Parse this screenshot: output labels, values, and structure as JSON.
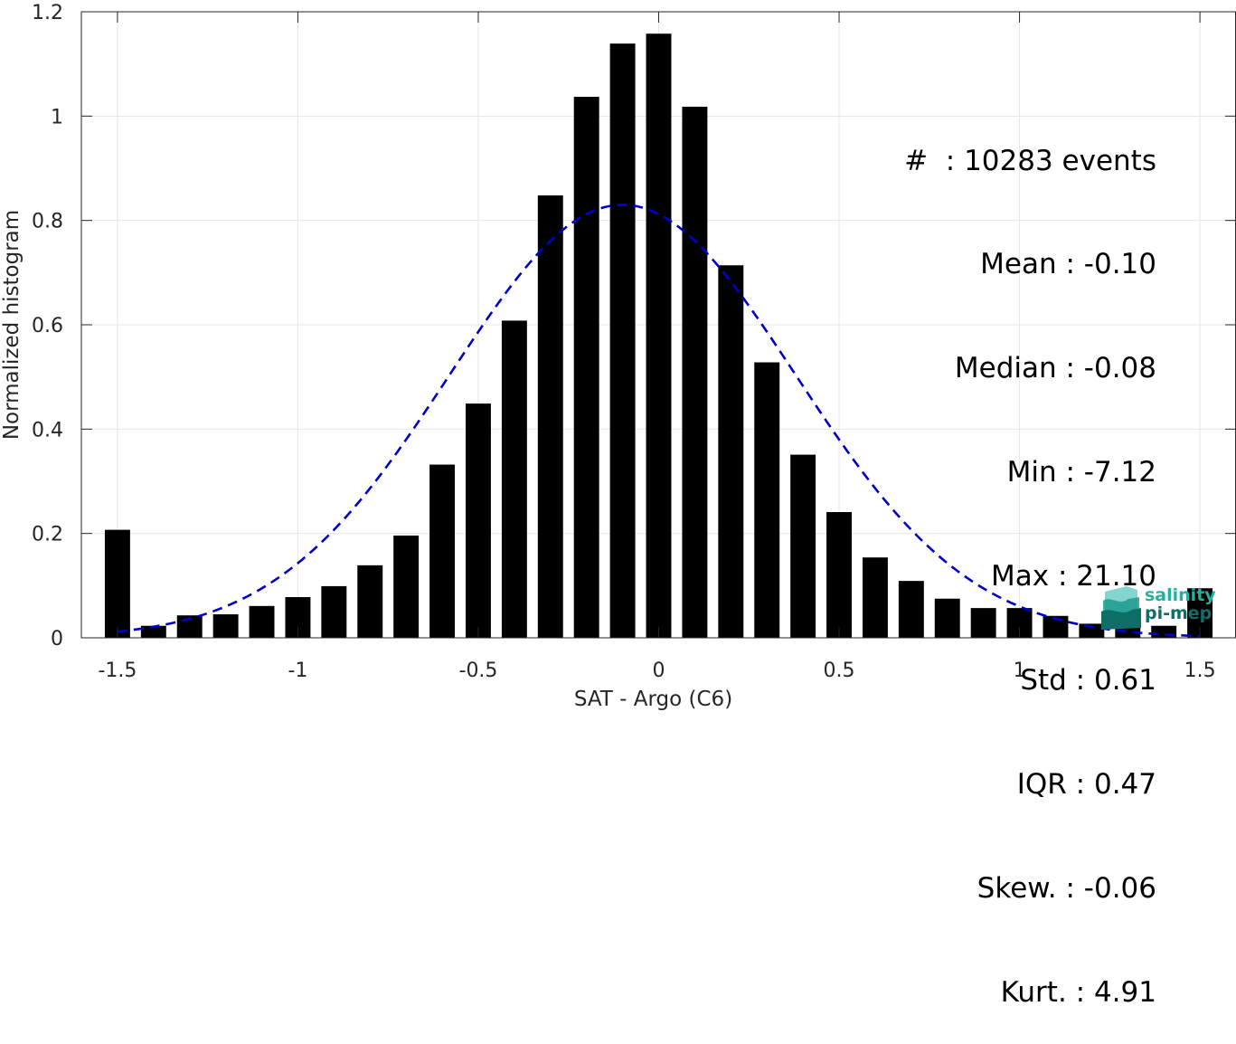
{
  "chart_data": {
    "type": "bar",
    "xlabel": "SAT - Argo (C6)",
    "ylabel": "Normalized histogram",
    "xlim": [
      -1.6,
      1.6
    ],
    "ylim": [
      0,
      1.2
    ],
    "xticks": [
      -1.5,
      -1,
      -0.5,
      0,
      0.5,
      1,
      1.5
    ],
    "xtick_labels": [
      "-1.5",
      "-1",
      "-0.5",
      "0",
      "0.5",
      "1",
      "1.5"
    ],
    "yticks": [
      0,
      0.2,
      0.4,
      0.6,
      0.8,
      1,
      1.2
    ],
    "ytick_labels": [
      "0",
      "0.2",
      "0.4",
      "0.6",
      "0.8",
      "1",
      "1.2"
    ],
    "grid": true,
    "bar_width": 0.07,
    "bar_color": "#000000",
    "x": [
      -1.5,
      -1.4,
      -1.3,
      -1.2,
      -1.1,
      -1.0,
      -0.9,
      -0.8,
      -0.7,
      -0.6,
      -0.5,
      -0.4,
      -0.3,
      -0.2,
      -0.1,
      0.0,
      0.1,
      0.2,
      0.3,
      0.4,
      0.5,
      0.6,
      0.7,
      0.8,
      0.9,
      1.0,
      1.1,
      1.2,
      1.3,
      1.4,
      1.5
    ],
    "values": [
      0.207,
      0.023,
      0.043,
      0.045,
      0.061,
      0.078,
      0.099,
      0.139,
      0.196,
      0.332,
      0.449,
      0.608,
      0.848,
      1.037,
      1.139,
      1.158,
      1.018,
      0.714,
      0.528,
      0.351,
      0.241,
      0.154,
      0.109,
      0.075,
      0.057,
      0.057,
      0.042,
      0.027,
      0.023,
      0.023,
      0.095
    ],
    "fit_curve": {
      "type": "gaussian",
      "mean": -0.1,
      "std": 0.48,
      "peak": 0.83,
      "x_range": [
        -1.5,
        1.5
      ],
      "color": "#0000cc",
      "style": "dashed"
    },
    "stats": [
      "#  : 10283 events",
      "Mean : -0.10",
      "Median : -0.08",
      "Min : -7.12",
      "Max : 21.10",
      "Std : 0.61",
      "IQR : 0.47",
      "Skew. : -0.06",
      "Kurt. : 4.91"
    ]
  },
  "logo": {
    "line1": "salinity",
    "line2": "pi-mep"
  }
}
